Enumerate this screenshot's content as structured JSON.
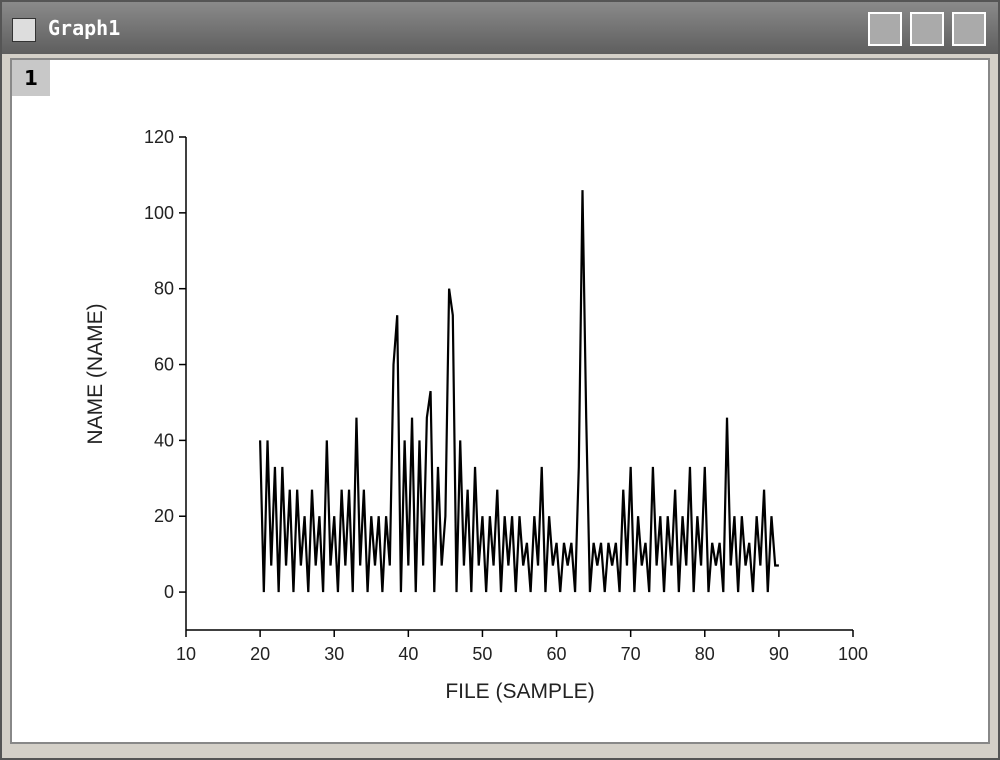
{
  "window": {
    "title": "Graph1",
    "layer_tab": "1"
  },
  "chart_data": {
    "type": "line",
    "x_label": "FILE (SAMPLE)",
    "y_label": "NAME (NAME)",
    "xlim": [
      10,
      100
    ],
    "ylim": [
      -10,
      120
    ],
    "xticks": [
      10,
      20,
      30,
      40,
      50,
      60,
      70,
      80,
      90,
      100
    ],
    "yticks": [
      0,
      20,
      40,
      60,
      80,
      100,
      120
    ],
    "x": [
      20,
      20.5,
      21,
      21.5,
      22,
      22.5,
      23,
      23.5,
      24,
      24.5,
      25,
      25.5,
      26,
      26.5,
      27,
      27.5,
      28,
      28.5,
      29,
      29.5,
      30,
      30.5,
      31,
      31.5,
      32,
      32.5,
      33,
      33.5,
      34,
      34.5,
      35,
      35.5,
      36,
      36.5,
      37,
      37.5,
      38,
      38.5,
      39,
      39.5,
      40,
      40.5,
      41,
      41.5,
      42,
      42.5,
      43,
      43.5,
      44,
      44.5,
      45,
      45.5,
      46,
      46.5,
      47,
      47.5,
      48,
      48.5,
      49,
      49.5,
      50,
      50.5,
      51,
      51.5,
      52,
      52.5,
      53,
      53.5,
      54,
      54.5,
      55,
      55.5,
      56,
      56.5,
      57,
      57.5,
      58,
      58.5,
      59,
      59.5,
      60,
      60.5,
      61,
      61.5,
      62,
      62.5,
      63,
      63.5,
      64,
      64.5,
      65,
      65.5,
      66,
      66.5,
      67,
      67.5,
      68,
      68.5,
      69,
      69.5,
      70,
      70.5,
      71,
      71.5,
      72,
      72.5,
      73,
      73.5,
      74,
      74.5,
      75,
      75.5,
      76,
      76.5,
      77,
      77.5,
      78,
      78.5,
      79,
      79.5,
      80,
      80.5,
      81,
      81.5,
      82,
      82.5,
      83,
      83.5,
      84,
      84.5,
      85,
      85.5,
      86,
      86.5,
      87,
      87.5,
      88,
      88.5,
      89,
      89.5,
      90
    ],
    "series": [
      {
        "color": "#000000",
        "values": [
          40,
          0,
          40,
          7,
          33,
          0,
          33,
          7,
          27,
          0,
          27,
          7,
          20,
          0,
          27,
          7,
          20,
          0,
          40,
          7,
          20,
          0,
          27,
          7,
          27,
          0,
          46,
          7,
          27,
          0,
          20,
          7,
          20,
          0,
          20,
          7,
          60,
          73,
          0,
          40,
          7,
          46,
          0,
          40,
          7,
          46,
          53,
          0,
          33,
          7,
          20,
          80,
          73,
          0,
          40,
          7,
          27,
          0,
          33,
          7,
          20,
          0,
          20,
          7,
          27,
          0,
          20,
          7,
          20,
          0,
          20,
          7,
          13,
          0,
          20,
          7,
          33,
          0,
          20,
          7,
          13,
          0,
          13,
          7,
          13,
          0,
          33,
          106,
          46,
          0,
          13,
          7,
          13,
          0,
          13,
          7,
          13,
          0,
          27,
          7,
          33,
          0,
          20,
          7,
          13,
          0,
          33,
          7,
          20,
          0,
          20,
          7,
          27,
          0,
          20,
          7,
          33,
          0,
          20,
          7,
          33,
          0,
          13,
          7,
          13,
          0,
          46,
          7,
          20,
          0,
          20,
          7,
          13,
          0,
          20,
          7,
          27,
          0,
          20,
          7,
          7
        ]
      }
    ]
  }
}
